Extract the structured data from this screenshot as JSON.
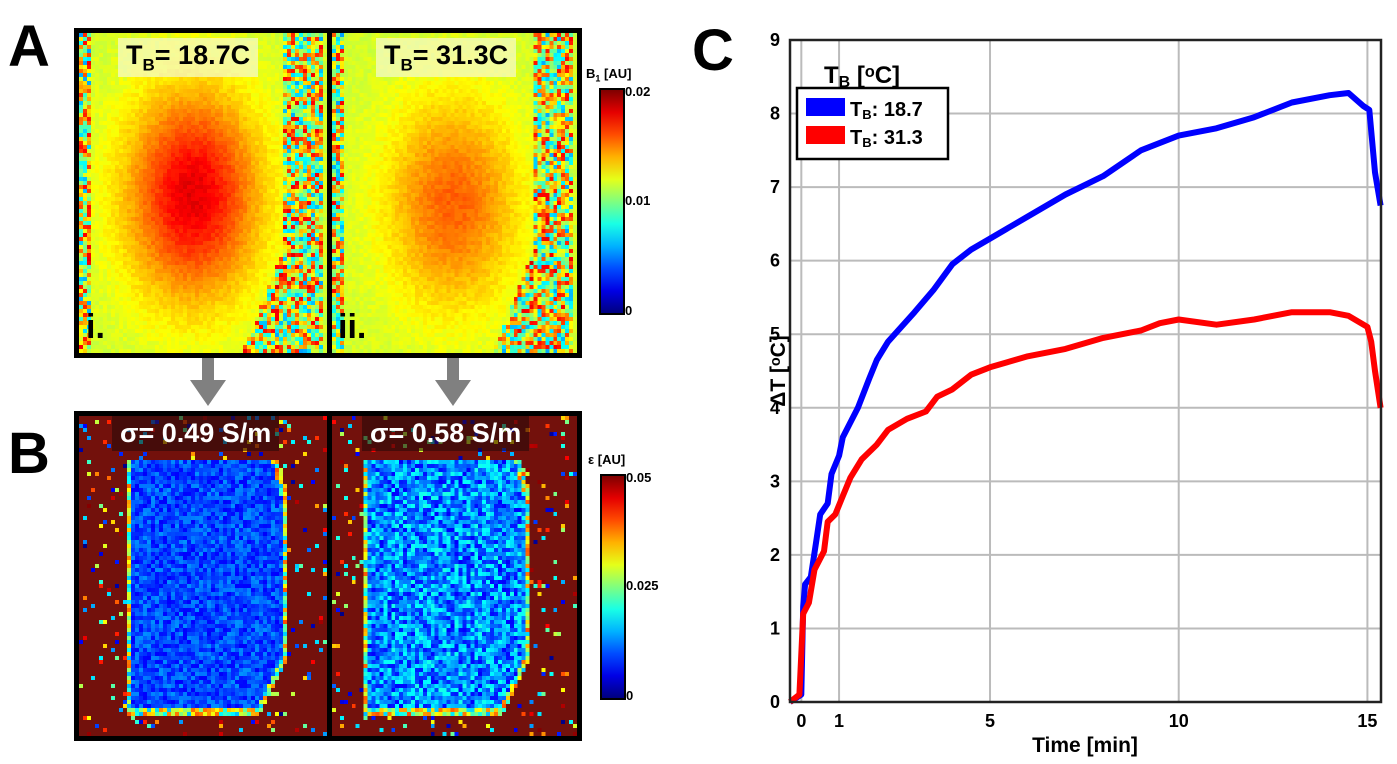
{
  "panels": {
    "a": {
      "letter": "A",
      "maps": [
        {
          "label_main": "T",
          "label_sub": "B",
          "label_rest": "= 18.7C",
          "roman": "i."
        },
        {
          "label_main": "T",
          "label_sub": "B",
          "label_rest": "= 31.3C",
          "roman": "ii."
        }
      ],
      "colorbar": {
        "title_main": "B",
        "title_sub": "1",
        "title_rest": " [AU]",
        "ticks": [
          "0.02",
          "0.01",
          "0"
        ],
        "colormap": "jet",
        "range": [
          0,
          0.02
        ]
      }
    },
    "b": {
      "letter": "B",
      "maps": [
        {
          "label": "σ= 0.49 S/m"
        },
        {
          "label": "σ= 0.58 S/m"
        }
      ],
      "colorbar": {
        "title": "ε [AU]",
        "ticks": [
          "0.05",
          "0.025",
          "0"
        ],
        "colormap": "jet",
        "range": [
          0,
          0.05
        ]
      }
    },
    "c": {
      "letter": "C"
    }
  },
  "arrow_color": "#808080",
  "chart_data": {
    "type": "line",
    "xlabel": "Time [min]",
    "ylabel": "ΔT [ᵒC]",
    "xlim": [
      -0.3,
      15.36
    ],
    "ylim": [
      0,
      9
    ],
    "xticks": [
      0,
      1,
      5,
      10,
      15
    ],
    "yticks": [
      0,
      1,
      2,
      3,
      4,
      5,
      6,
      7,
      8,
      9
    ],
    "grid": true,
    "legend": {
      "title_main": "T",
      "title_sub": "B",
      "title_rest": " [ᵒC]",
      "placement": "top-left"
    },
    "series": [
      {
        "name_main": "T",
        "name_sub": "B",
        "name_rest": ": 18.7",
        "color": "#0000ff",
        "x": [
          -0.3,
          0,
          0.05,
          0.1,
          0.25,
          0.4,
          0.5,
          0.7,
          0.8,
          1,
          1.1,
          1.5,
          1.8,
          2,
          2.3,
          3,
          3.5,
          4,
          4.5,
          5,
          6,
          7,
          8,
          9,
          10,
          11,
          12,
          13,
          14,
          14.5,
          14.9,
          15.05,
          15.2,
          15.35
        ],
        "y": [
          0,
          0.1,
          1.3,
          1.6,
          1.7,
          2.2,
          2.55,
          2.7,
          3.1,
          3.35,
          3.6,
          4.0,
          4.4,
          4.65,
          4.9,
          5.3,
          5.6,
          5.95,
          6.15,
          6.3,
          6.6,
          6.9,
          7.15,
          7.5,
          7.7,
          7.8,
          7.95,
          8.15,
          8.25,
          8.28,
          8.1,
          8.05,
          7.2,
          6.75
        ]
      },
      {
        "name_main": "T",
        "name_sub": "B",
        "name_rest": ": 31.3",
        "color": "#ff0000",
        "x": [
          -0.3,
          -0.05,
          0.05,
          0.2,
          0.35,
          0.6,
          0.7,
          0.9,
          1.1,
          1.3,
          1.6,
          2,
          2.3,
          2.8,
          3.3,
          3.6,
          4,
          4.5,
          5,
          6,
          7,
          8,
          9,
          9.5,
          10,
          11,
          12,
          13,
          14,
          14.5,
          15,
          15.1,
          15.2,
          15.35
        ],
        "y": [
          0,
          0.1,
          1.2,
          1.35,
          1.8,
          2.05,
          2.45,
          2.55,
          2.8,
          3.05,
          3.3,
          3.5,
          3.7,
          3.85,
          3.95,
          4.15,
          4.25,
          4.45,
          4.55,
          4.7,
          4.8,
          4.95,
          5.05,
          5.15,
          5.2,
          5.13,
          5.2,
          5.3,
          5.3,
          5.25,
          5.1,
          4.9,
          4.5,
          4.0
        ]
      }
    ]
  }
}
